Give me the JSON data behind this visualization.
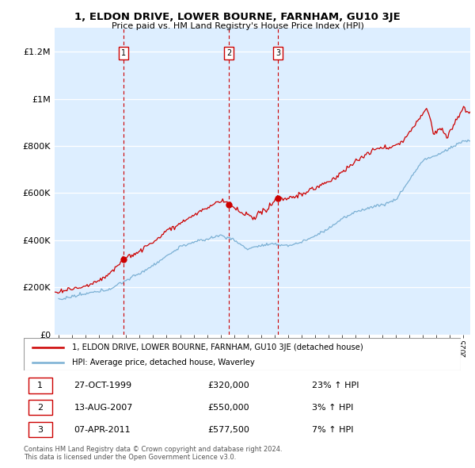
{
  "title": "1, ELDON DRIVE, LOWER BOURNE, FARNHAM, GU10 3JE",
  "subtitle": "Price paid vs. HM Land Registry's House Price Index (HPI)",
  "legend_line1": "1, ELDON DRIVE, LOWER BOURNE, FARNHAM, GU10 3JE (detached house)",
  "legend_line2": "HPI: Average price, detached house, Waverley",
  "footnote": "Contains HM Land Registry data © Crown copyright and database right 2024.\nThis data is licensed under the Open Government Licence v3.0.",
  "sale_points": [
    {
      "num": 1,
      "date_x": 1999.82,
      "price": 320000,
      "label": "1"
    },
    {
      "num": 2,
      "date_x": 2007.62,
      "price": 550000,
      "label": "2"
    },
    {
      "num": 3,
      "date_x": 2011.27,
      "price": 577500,
      "label": "3"
    }
  ],
  "table_rows": [
    {
      "num": "1",
      "date": "27-OCT-1999",
      "price": "£320,000",
      "hpi": "23% ↑ HPI"
    },
    {
      "num": "2",
      "date": "13-AUG-2007",
      "price": "£550,000",
      "hpi": "3% ↑ HPI"
    },
    {
      "num": "3",
      "date": "07-APR-2011",
      "price": "£577,500",
      "hpi": "7% ↑ HPI"
    }
  ],
  "red_line_color": "#cc0000",
  "blue_line_color": "#7bb0d4",
  "background_color": "#ddeeff",
  "ylim_max": 1300000,
  "yticks": [
    0,
    200000,
    400000,
    600000,
    800000,
    1000000,
    1200000
  ],
  "ytick_labels": [
    "£0",
    "£200K",
    "£400K",
    "£600K",
    "£800K",
    "£1M",
    "£1.2M"
  ],
  "xlim_start": 1994.7,
  "xlim_end": 2025.5,
  "hpi_anchors_x": [
    1995,
    1996,
    1997,
    1998,
    1999,
    2000,
    2001,
    2002,
    2003,
    2004,
    2005,
    2006,
    2007,
    2008,
    2009,
    2010,
    2011,
    2012,
    2013,
    2014,
    2015,
    2016,
    2017,
    2018,
    2019,
    2020,
    2021,
    2022,
    2023,
    2024,
    2025
  ],
  "hpi_anchors_y": [
    148000,
    158000,
    168000,
    180000,
    200000,
    230000,
    260000,
    295000,
    330000,
    370000,
    390000,
    405000,
    420000,
    400000,
    360000,
    375000,
    380000,
    375000,
    390000,
    415000,
    450000,
    490000,
    520000,
    540000,
    555000,
    575000,
    660000,
    740000,
    760000,
    790000,
    820000
  ],
  "red_anchors_x": [
    1994.7,
    1995.5,
    1996.5,
    1997.5,
    1998.5,
    1999.82,
    2000.5,
    2001.5,
    2003.0,
    2005.0,
    2007.0,
    2007.62,
    2008.5,
    2009.5,
    2010.5,
    2011.27,
    2012.0,
    2013.0,
    2014.0,
    2015.5,
    2016.5,
    2017.5,
    2018.5,
    2019.5,
    2020.5,
    2021.5,
    2022.3,
    2022.8,
    2023.3,
    2023.8,
    2024.3,
    2025.0,
    2025.5
  ],
  "red_anchors_y": [
    178000,
    185000,
    200000,
    215000,
    240000,
    320000,
    335000,
    365000,
    430000,
    500000,
    560000,
    550000,
    510000,
    480000,
    530000,
    577500,
    565000,
    590000,
    620000,
    660000,
    710000,
    750000,
    780000,
    790000,
    820000,
    900000,
    970000,
    850000,
    880000,
    840000,
    900000,
    960000,
    940000
  ]
}
